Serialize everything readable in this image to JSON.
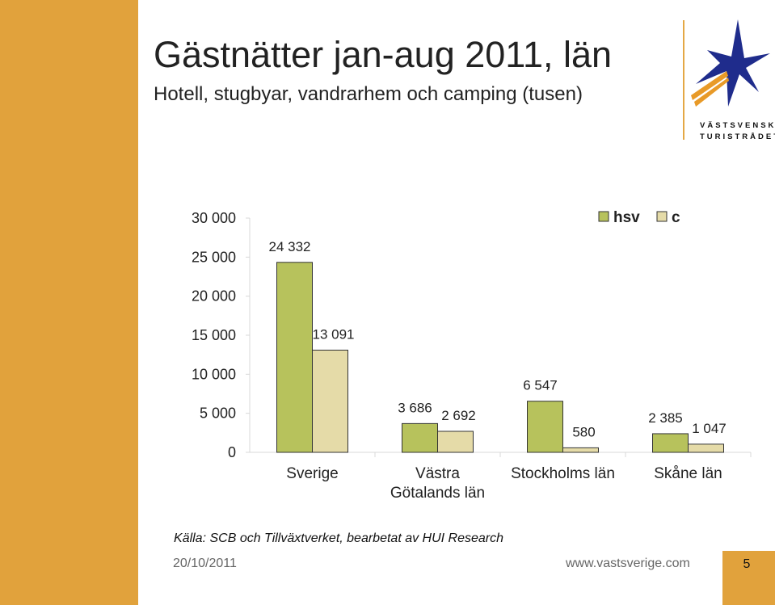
{
  "header": {
    "title": "Gästnätter jan-aug 2011, län",
    "subtitle": "Hotell, stugbyar, vandrarhem och camping (tusen)"
  },
  "logo": {
    "line1": "VÄSTSVENSKA",
    "line2": "TURISTRÅDET"
  },
  "chart_data": {
    "type": "bar",
    "title": "",
    "xlabel": "",
    "ylabel": "",
    "ylim": [
      0,
      30000
    ],
    "yticks": [
      "0",
      "5 000",
      "10 000",
      "15 000",
      "20 000",
      "25 000",
      "30 000"
    ],
    "categories": [
      "Sverige",
      "Västra Götalands län",
      "Stockholms län",
      "Skåne län"
    ],
    "category_lines": [
      [
        "Sverige"
      ],
      [
        "Västra",
        "Götalands län"
      ],
      [
        "Stockholms län"
      ],
      [
        "Skåne län"
      ]
    ],
    "series": [
      {
        "name": "hsv",
        "color": "#b7c25c",
        "values": [
          24332,
          3686,
          6547,
          2385
        ],
        "labels": [
          "24 332",
          "3 686",
          "6 547",
          "2 385"
        ]
      },
      {
        "name": "c",
        "color": "#e5dba8",
        "values": [
          13091,
          2692,
          580,
          1047
        ],
        "labels": [
          "13 091",
          "2 692",
          "580",
          "1 047"
        ]
      }
    ],
    "grid": false,
    "legend_position": "top-right"
  },
  "footer": {
    "source": "Källa: SCB och Tillväxtverket, bearbetat av HUI Research",
    "date": "20/10/2011",
    "url": "www.vastsverige.com",
    "page": "5"
  },
  "colors": {
    "accent": "#e1a23c",
    "logo_blue": "#1f2c8c",
    "logo_orange": "#e89a28"
  }
}
